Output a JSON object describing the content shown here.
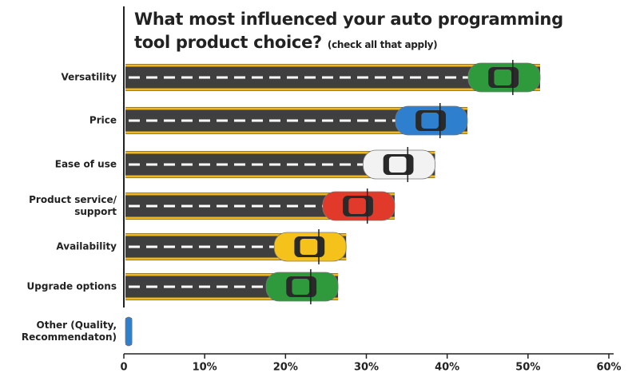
{
  "chart_data": {
    "type": "bar",
    "orientation": "horizontal",
    "title": "What most influenced your auto programming tool product choice?",
    "subtitle": "(check all that apply)",
    "categories": [
      "Versatility",
      "Price",
      "Ease of use",
      "Product service/ support",
      "Availability",
      "Upgrade options",
      "Other (Quality, Recommendaton)"
    ],
    "values": [
      51.5,
      42.5,
      38.5,
      33.5,
      27.5,
      26.5,
      1
    ],
    "colors": [
      "#2e9a3c",
      "#2f7fcf",
      "#f2f2f2",
      "#e23a2a",
      "#f5c21b",
      "#2e9a3c",
      "#2f7fcf"
    ],
    "xlim": [
      0,
      60
    ],
    "xticks": [
      0,
      {
        "value": 10,
        "label": "10%"
      },
      {
        "value": 20,
        "label": "20%"
      },
      {
        "value": 30,
        "label": "30%"
      },
      {
        "value": 40,
        "label": "40%"
      },
      {
        "value": 50,
        "label": "50%"
      },
      {
        "value": 60,
        "label": "60%"
      }
    ]
  }
}
